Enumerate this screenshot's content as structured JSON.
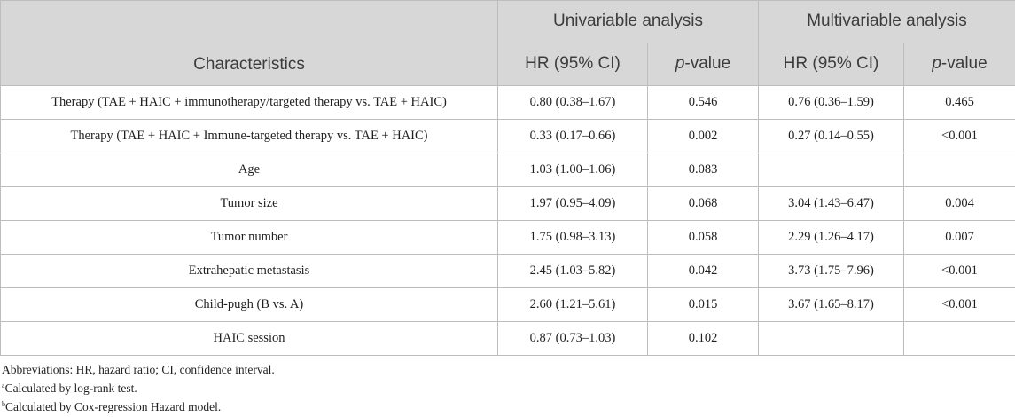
{
  "header": {
    "characteristics": "Characteristics",
    "univariable": "Univariable analysis",
    "multivariable": "Multivariable analysis",
    "hr_ci": "HR (95% CI)",
    "p_italic": "p",
    "p_suffix": "-value"
  },
  "rows": [
    {
      "label": "Therapy (TAE + HAIC + immunotherapy/targeted therapy vs. TAE + HAIC)",
      "uni_hr": "0.80 (0.38–1.67)",
      "uni_p": "0.546",
      "multi_hr": "0.76 (0.36–1.59)",
      "multi_p": "0.465"
    },
    {
      "label": "Therapy (TAE + HAIC + Immune-targeted therapy vs. TAE + HAIC)",
      "uni_hr": "0.33 (0.17–0.66)",
      "uni_p": "0.002",
      "multi_hr": "0.27 (0.14–0.55)",
      "multi_p": "<0.001"
    },
    {
      "label": "Age",
      "uni_hr": "1.03 (1.00–1.06)",
      "uni_p": "0.083",
      "multi_hr": "",
      "multi_p": ""
    },
    {
      "label": "Tumor size",
      "uni_hr": "1.97 (0.95–4.09)",
      "uni_p": "0.068",
      "multi_hr": "3.04 (1.43–6.47)",
      "multi_p": "0.004"
    },
    {
      "label": "Tumor number",
      "uni_hr": "1.75 (0.98–3.13)",
      "uni_p": "0.058",
      "multi_hr": "2.29 (1.26–4.17)",
      "multi_p": "0.007"
    },
    {
      "label": "Extrahepatic metastasis",
      "uni_hr": "2.45 (1.03–5.82)",
      "uni_p": "0.042",
      "multi_hr": "3.73 (1.75–7.96)",
      "multi_p": "<0.001"
    },
    {
      "label": "Child-pugh (B vs. A)",
      "uni_hr": "2.60 (1.21–5.61)",
      "uni_p": "0.015",
      "multi_hr": "3.67 (1.65–8.17)",
      "multi_p": "<0.001"
    },
    {
      "label": "HAIC session",
      "uni_hr": "0.87 (0.73–1.03)",
      "uni_p": "0.102",
      "multi_hr": "",
      "multi_p": ""
    }
  ],
  "footnotes": {
    "abbreviations": "Abbreviations: HR, hazard ratio; CI, confidence interval.",
    "a_marker": "a",
    "a_text": "Calculated by log-rank test.",
    "b_marker": "b",
    "b_text": "Calculated by Cox-regression Hazard model."
  }
}
